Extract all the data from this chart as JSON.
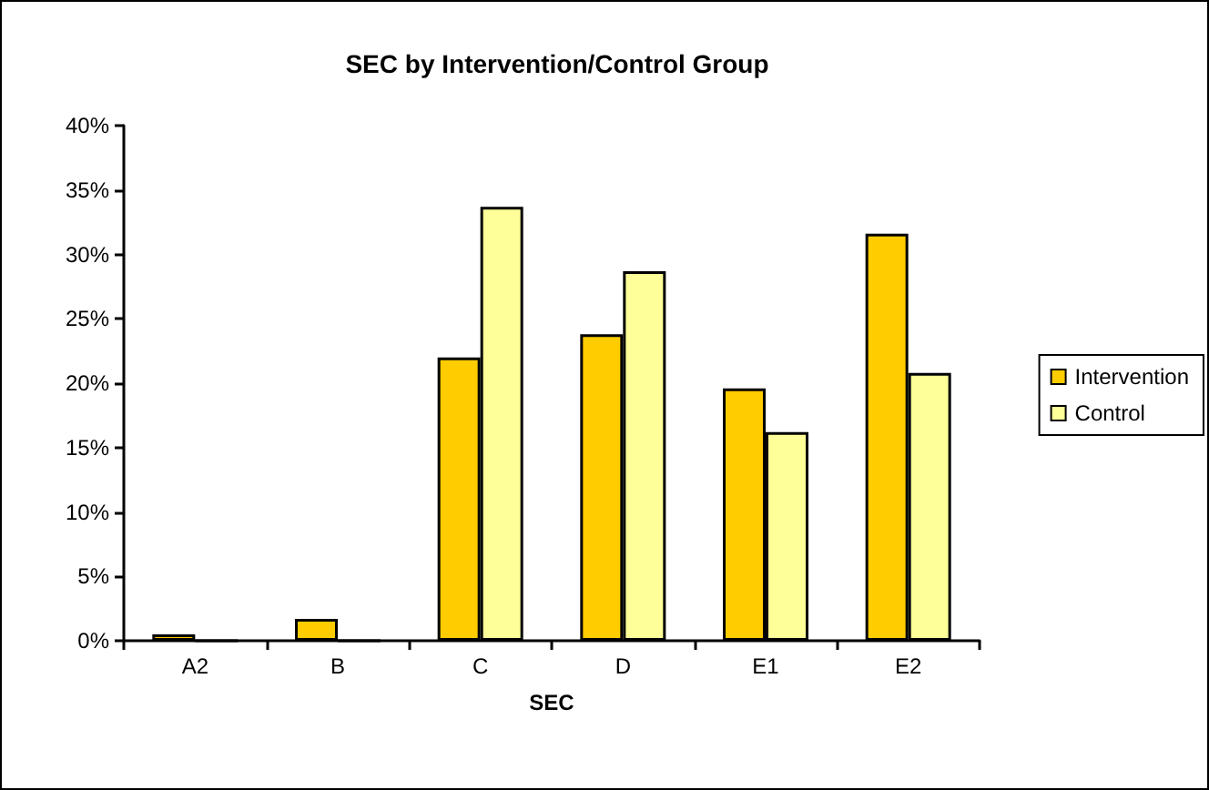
{
  "chart_data": {
    "type": "bar",
    "title": "SEC by Intervention/Control Group",
    "xlabel": "SEC",
    "categories": [
      "A2",
      "B",
      "C",
      "D",
      "E1",
      "E2"
    ],
    "series": [
      {
        "name": "Intervention",
        "color": "#ffcc00",
        "values": [
          0.5,
          1.7,
          22.0,
          23.8,
          19.6,
          31.6
        ]
      },
      {
        "name": "Control",
        "color": "#ffff99",
        "values": [
          0,
          0,
          33.7,
          28.7,
          16.2,
          20.8
        ]
      }
    ],
    "ylim": [
      0,
      40
    ],
    "yticks": [
      {
        "value": 0,
        "label": "0%"
      },
      {
        "value": 5,
        "label": "5%"
      },
      {
        "value": 10,
        "label": "10%"
      },
      {
        "value": 15,
        "label": "15%"
      },
      {
        "value": 20,
        "label": "20%"
      },
      {
        "value": 25,
        "label": "25%"
      },
      {
        "value": 30,
        "label": "30%"
      },
      {
        "value": 35,
        "label": "35%"
      },
      {
        "value": 40,
        "label": "40%"
      }
    ],
    "grid": false,
    "legend": "right"
  }
}
